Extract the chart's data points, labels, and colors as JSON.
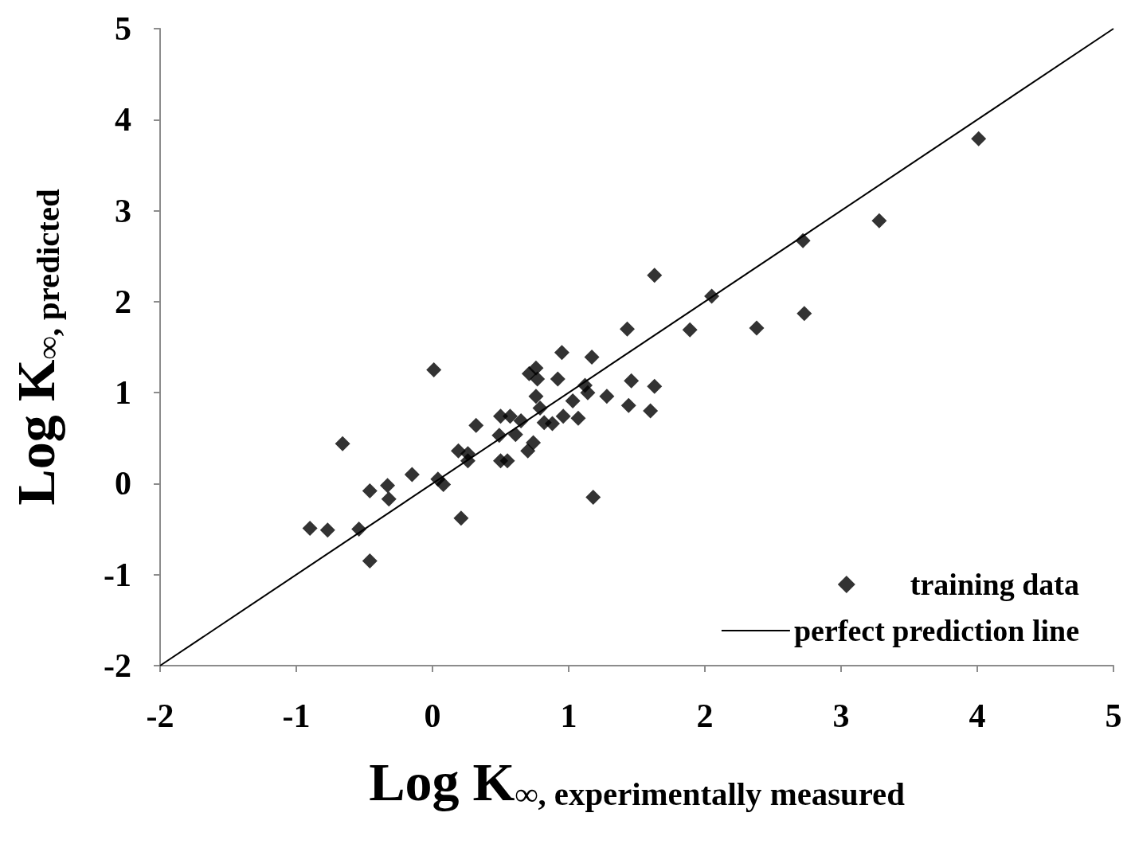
{
  "chart_data": {
    "type": "scatter",
    "xlabel": "Log K$_{∞, experimentally measured}$",
    "ylabel": "Log K$_{∞, predicted}$",
    "xlim": [
      -2,
      5
    ],
    "xticks": [
      -2,
      -1,
      0,
      1,
      2,
      3,
      4,
      5
    ],
    "ylim": [
      -2,
      5
    ],
    "yticks": [
      -2,
      -1,
      0,
      1,
      2,
      3,
      4,
      5
    ],
    "grid": false,
    "legend": "bottom right",
    "marker": "diamond",
    "series": [
      {
        "name": "training data",
        "color": "#000000",
        "x": [
          -0.9,
          -0.77,
          -0.54,
          -0.66,
          -0.46,
          -0.46,
          -0.33,
          -0.32,
          -0.15,
          0.01,
          0.04,
          0.08,
          0.21,
          0.19,
          0.26,
          0.26,
          0.32,
          0.49,
          0.5,
          0.5,
          0.55,
          0.57,
          0.65,
          0.61,
          0.71,
          0.76,
          0.77,
          0.7,
          0.74,
          0.76,
          0.79,
          0.82,
          0.88,
          0.92,
          0.95,
          0.96,
          1.03,
          1.07,
          1.12,
          1.14,
          1.17,
          1.18,
          1.28,
          1.43,
          1.44,
          1.46,
          1.6,
          1.63,
          1.63,
          1.89,
          2.05,
          2.38,
          2.72,
          2.73,
          3.28,
          4.01
        ],
        "values": [
          -0.49,
          -0.51,
          -0.5,
          0.44,
          -0.85,
          -0.08,
          -0.02,
          -0.17,
          0.1,
          1.25,
          0.05,
          -0.01,
          -0.38,
          0.36,
          0.33,
          0.25,
          0.64,
          0.53,
          0.74,
          0.25,
          0.25,
          0.74,
          0.69,
          0.54,
          1.21,
          1.27,
          1.15,
          0.36,
          0.45,
          0.96,
          0.83,
          0.67,
          0.66,
          1.15,
          1.44,
          0.74,
          0.91,
          0.72,
          1.08,
          1.0,
          1.39,
          -0.15,
          0.96,
          1.7,
          0.86,
          1.13,
          0.8,
          1.07,
          2.29,
          1.69,
          2.06,
          1.71,
          2.67,
          1.87,
          2.89,
          3.79
        ]
      },
      {
        "name": "perfect prediction line",
        "type": "line",
        "color": "#000000",
        "line_style": "solid",
        "marker": "none",
        "x": [
          -2,
          5
        ],
        "values": [
          -2,
          5
        ]
      }
    ]
  }
}
